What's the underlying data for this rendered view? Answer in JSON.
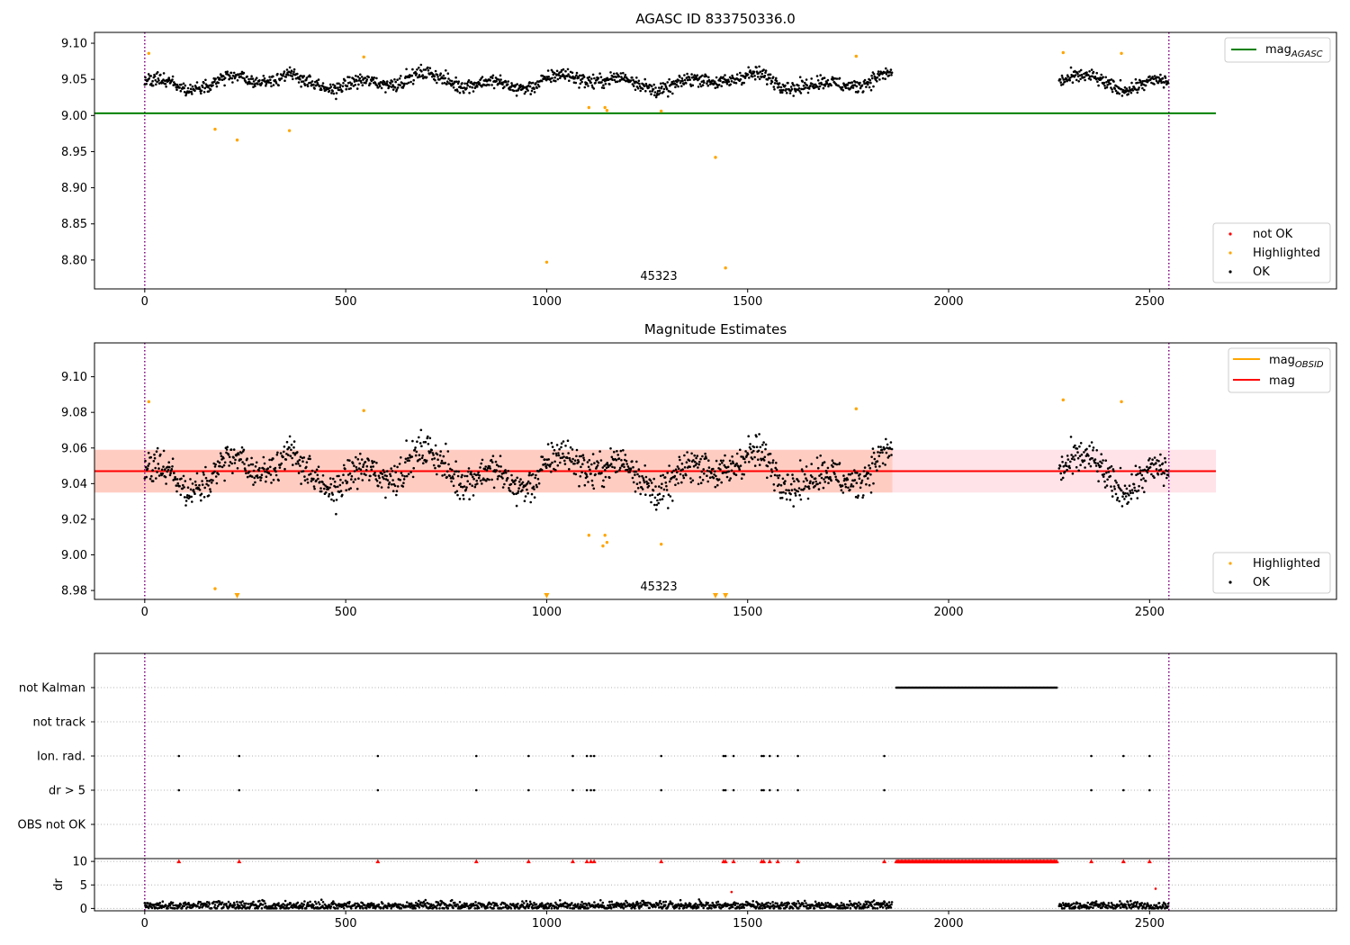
{
  "chart_data": [
    {
      "type": "scatter",
      "title": "AGASC ID 833750336.0",
      "annotation": "45323",
      "xlim": [
        -125,
        2965
      ],
      "ylim": [
        8.76,
        9.115
      ],
      "xticks": [
        0,
        500,
        1000,
        1500,
        2000,
        2500
      ],
      "yticks": [
        8.8,
        8.85,
        8.9,
        8.95,
        9.0,
        9.05,
        9.1
      ],
      "vlines": [
        0,
        2548
      ],
      "hlines": [
        {
          "name": "mag_AGASC",
          "y": 9.003,
          "x": [
            -125,
            2665
          ],
          "color": "#008000"
        }
      ],
      "legends": [
        {
          "position": "upper-right",
          "entries": [
            {
              "label": "mag",
              "sub": "AGASC",
              "kind": "line",
              "color": "#008000"
            }
          ]
        },
        {
          "position": "lower-right",
          "entries": [
            {
              "label": "not OK",
              "kind": "dot",
              "color": "#ff0000"
            },
            {
              "label": "Highlighted",
              "kind": "dot",
              "color": "#ffa500"
            },
            {
              "label": "OK",
              "kind": "dot",
              "color": "#000000"
            }
          ]
        }
      ],
      "series": [
        {
          "name": "OK",
          "color": "#000000",
          "segments": [
            [
              0,
              1860
            ],
            [
              2275,
              2548
            ]
          ],
          "center": 9.047,
          "amplitude": 0.012,
          "noise": 0.008
        },
        {
          "name": "Highlighted",
          "color": "#ffa500",
          "x": [
            10,
            175,
            230,
            360,
            545,
            1000,
            1105,
            1145,
            1150,
            1285,
            1420,
            1445,
            1770,
            2285,
            2430
          ],
          "y": [
            9.086,
            8.981,
            8.966,
            8.979,
            9.081,
            8.797,
            9.011,
            9.011,
            9.007,
            9.006,
            8.942,
            8.789,
            9.082,
            9.087,
            9.086
          ]
        }
      ]
    },
    {
      "type": "scatter",
      "title": "Magnitude Estimates",
      "annotation": "45323",
      "xlim": [
        -125,
        2965
      ],
      "ylim": [
        8.975,
        9.119
      ],
      "xticks": [
        0,
        500,
        1000,
        1500,
        2000,
        2500
      ],
      "yticks": [
        8.98,
        9.0,
        9.02,
        9.04,
        9.06,
        9.08,
        9.1
      ],
      "vlines": [
        0,
        2548
      ],
      "hlines": [
        {
          "name": "mag",
          "y": 9.047,
          "x": [
            -125,
            2665
          ],
          "color": "#ff0000"
        }
      ],
      "bands": [
        {
          "y": [
            9.035,
            9.059
          ],
          "x": [
            -125,
            2665
          ],
          "color": "#ffc0cb",
          "opacity": 0.45
        },
        {
          "y": [
            9.035,
            9.059
          ],
          "x": [
            -125,
            1860
          ],
          "color": "#ffa07a",
          "opacity": 0.35
        }
      ],
      "legends": [
        {
          "position": "upper-right",
          "entries": [
            {
              "label": "mag",
              "sub": "OBSID",
              "kind": "line",
              "color": "#ffa500"
            },
            {
              "label": "mag",
              "kind": "line",
              "color": "#ff0000"
            }
          ]
        },
        {
          "position": "lower-right",
          "entries": [
            {
              "label": "Highlighted",
              "kind": "dot",
              "color": "#ffa500"
            },
            {
              "label": "OK",
              "kind": "dot",
              "color": "#000000"
            }
          ]
        }
      ],
      "series": [
        {
          "name": "OK",
          "color": "#000000",
          "segments": [
            [
              0,
              1860
            ],
            [
              2275,
              2548
            ]
          ],
          "center": 9.047,
          "amplitude": 0.012,
          "noise": 0.008
        },
        {
          "name": "Highlighted",
          "color": "#ffa500",
          "x": [
            10,
            175,
            545,
            1105,
            1140,
            1145,
            1150,
            1285,
            1770,
            2285,
            2430
          ],
          "y": [
            9.086,
            8.981,
            9.081,
            9.011,
            9.005,
            9.011,
            9.007,
            9.006,
            9.082,
            9.087,
            9.086
          ]
        },
        {
          "name": "Highlighted (below range)",
          "color": "#ffa500",
          "marker": "triangle-down",
          "x": [
            230,
            1000,
            1420,
            1445
          ],
          "y": [
            8.976,
            8.976,
            8.976,
            8.976
          ]
        }
      ]
    },
    {
      "type": "scatter",
      "title": "",
      "xlim": [
        -125,
        2965
      ],
      "vlines": [
        0,
        2548
      ],
      "flag_rows": [
        "not Kalman",
        "not track",
        "Ion. rad.",
        "dr > 5",
        "OBS not OK"
      ],
      "flags": [
        {
          "row": "not Kalman",
          "ranges": [
            [
              1870,
              2270
            ]
          ]
        },
        {
          "row": "not track",
          "x": []
        },
        {
          "row": "Ion. rad.",
          "x": [
            85,
            235,
            580,
            825,
            955,
            1065,
            1100,
            1110,
            1118,
            1285,
            1440,
            1445,
            1465,
            1535,
            1540,
            1555,
            1575,
            1625,
            1840,
            2355,
            2435,
            2500
          ]
        },
        {
          "row": "dr > 5",
          "x": [
            85,
            235,
            580,
            825,
            955,
            1065,
            1100,
            1110,
            1118,
            1285,
            1440,
            1445,
            1465,
            1535,
            1540,
            1555,
            1575,
            1625,
            1840,
            2355,
            2435,
            2500
          ]
        },
        {
          "row": "OBS not OK",
          "x": []
        }
      ]
    },
    {
      "type": "scatter",
      "title": "",
      "ylabel": "dr",
      "xlim": [
        -125,
        2965
      ],
      "ylim": [
        -0.5,
        10.6
      ],
      "xticks": [
        0,
        500,
        1000,
        1500,
        2000,
        2500
      ],
      "yticks": [
        0,
        5,
        10
      ],
      "vlines": [
        0,
        2548
      ],
      "series": [
        {
          "name": "dr",
          "color": "#000000",
          "segments": [
            [
              0,
              1860
            ],
            [
              2275,
              2548
            ]
          ],
          "center": 0.6,
          "noise": 0.45
        },
        {
          "name": "dr clipped",
          "color": "#ff0000",
          "marker": "triangle-up",
          "x": [
            85,
            235,
            580,
            825,
            955,
            1065,
            1100,
            1110,
            1118,
            1285,
            1440,
            1445,
            1465,
            1535,
            1540,
            1555,
            1575,
            1625,
            1840,
            2355,
            2435,
            2500
          ],
          "y": 10,
          "ranges": [
            [
              1870,
              2270
            ]
          ]
        },
        {
          "name": "dr outliers",
          "color": "#ff0000",
          "x": [
            1460,
            2515
          ],
          "y": [
            3.5,
            4.2
          ]
        }
      ]
    }
  ]
}
